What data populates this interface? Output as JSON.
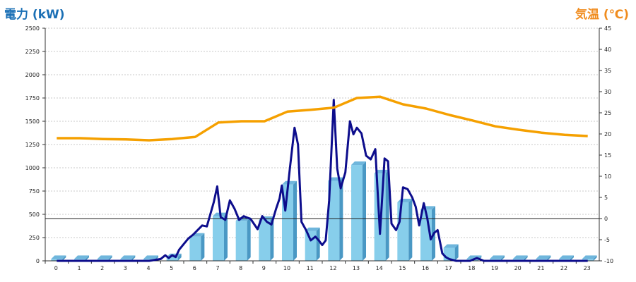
{
  "chart_data": {
    "type": "bar",
    "y_left_label": "電力 (kW)",
    "y_right_label": "気温 (℃)",
    "x": [
      "0",
      "1",
      "2",
      "3",
      "4",
      "5",
      "6",
      "7",
      "8",
      "9",
      "10",
      "11",
      "12",
      "13",
      "14",
      "15",
      "16",
      "17",
      "18",
      "19",
      "20",
      "21",
      "22",
      "23"
    ],
    "y_left_ticks": [
      "0",
      "250",
      "500",
      "750",
      "1000",
      "1250",
      "1500",
      "1750",
      "2000",
      "2250",
      "2500"
    ],
    "y_right_ticks": [
      "-10",
      "-5",
      "0",
      "5",
      "10",
      "15",
      "20",
      "25",
      "30",
      "35",
      "40",
      "45"
    ],
    "y_left_range": [
      0,
      2500
    ],
    "y_right_range": [
      -10,
      45
    ],
    "grid": "horizontal dotted",
    "colors": {
      "bar": "#87ceeb",
      "bar_side": "#4a98c4",
      "bar_top": "#6fb6dc",
      "power_line": "#0d0d8c",
      "temperature_line": "#f5a000",
      "left_title": "#1a6fb5",
      "right_title": "#f08c1e"
    },
    "series": [
      {
        "type": "bar",
        "axis": "left",
        "values": [
          20,
          20,
          20,
          20,
          20,
          40,
          260,
          480,
          430,
          440,
          820,
          320,
          860,
          1030,
          940,
          630,
          550,
          140,
          20,
          20,
          20,
          20,
          20,
          20
        ]
      },
      {
        "type": "line",
        "axis": "left",
        "x": [
          0,
          1,
          2,
          3,
          4,
          4.5,
          4.7,
          4.85,
          5.0,
          5.15,
          5.3,
          5.5,
          5.7,
          5.9,
          6.1,
          6.3,
          6.5,
          6.8,
          6.95,
          7.1,
          7.3,
          7.5,
          7.7,
          7.9,
          8.1,
          8.4,
          8.7,
          8.9,
          9.1,
          9.3,
          9.5,
          9.65,
          9.75,
          9.9,
          10.1,
          10.3,
          10.45,
          10.6,
          10.8,
          11.0,
          11.2,
          11.35,
          11.5,
          11.65,
          11.8,
          12.0,
          12.15,
          12.3,
          12.5,
          12.7,
          12.85,
          13.0,
          13.2,
          13.4,
          13.6,
          13.8,
          14.0,
          14.2,
          14.35,
          14.5,
          14.7,
          14.85,
          15.0,
          15.2,
          15.4,
          15.55,
          15.7,
          15.9,
          16.05,
          16.2,
          16.35,
          16.5,
          16.7,
          16.85,
          17.0,
          17.3,
          17.6,
          17.9,
          18.2,
          18.5,
          19,
          20,
          21,
          22,
          23
        ],
        "values": [
          0,
          0,
          0,
          0,
          0,
          20,
          60,
          30,
          60,
          40,
          120,
          180,
          240,
          280,
          330,
          380,
          370,
          630,
          800,
          470,
          440,
          650,
          560,
          440,
          480,
          450,
          340,
          480,
          420,
          390,
          560,
          670,
          810,
          540,
          1000,
          1430,
          1250,
          420,
          330,
          220,
          260,
          220,
          170,
          220,
          650,
          1730,
          990,
          780,
          950,
          1500,
          1360,
          1430,
          1370,
          1130,
          1090,
          1200,
          290,
          1100,
          1070,
          400,
          330,
          420,
          790,
          770,
          680,
          580,
          380,
          620,
          460,
          230,
          300,
          330,
          80,
          40,
          20,
          0,
          0,
          0,
          30,
          0,
          0,
          0,
          0,
          0,
          0
        ]
      },
      {
        "type": "line",
        "axis": "right",
        "x": [
          0,
          1,
          2,
          3,
          4,
          5,
          6,
          7,
          8,
          9,
          10,
          11,
          12,
          13,
          14,
          15,
          16,
          17,
          18,
          19,
          20,
          21,
          22,
          23
        ],
        "values": [
          19.0,
          19.0,
          18.8,
          18.7,
          18.5,
          18.8,
          19.3,
          22.7,
          23.0,
          23.0,
          25.3,
          25.7,
          26.2,
          28.5,
          28.8,
          27.0,
          26.0,
          24.5,
          23.2,
          21.8,
          21.0,
          20.3,
          19.8,
          19.5
        ]
      }
    ]
  }
}
